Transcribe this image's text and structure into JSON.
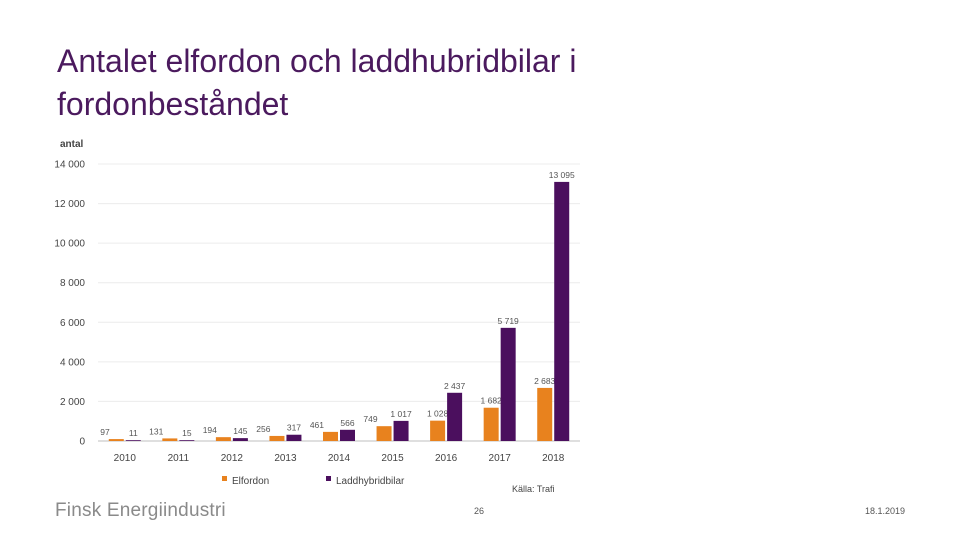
{
  "slide": {
    "title": "Antalet elfordon och laddhubridbilar i fordonbeståndet",
    "footer_logo": "Finsk Energiindustri",
    "page_number": "26",
    "date": "18.1.2019"
  },
  "chart_data": {
    "type": "bar",
    "ylabel": "antal",
    "ylim": [
      0,
      14000
    ],
    "y_ticks": [
      "0",
      "2 000",
      "4 000",
      "6 000",
      "8 000",
      "10 000",
      "12 000",
      "14 000"
    ],
    "categories": [
      "2010",
      "2011",
      "2012",
      "2013",
      "2014",
      "2015",
      "2016",
      "2017",
      "2018"
    ],
    "series": [
      {
        "name": "Elfordon",
        "color": "#e8821e",
        "values": [
          97,
          131,
          194,
          256,
          461,
          749,
          1028,
          1682,
          2683
        ],
        "labels": [
          "97",
          "131",
          "194",
          "256",
          "461",
          "749",
          "1 028",
          "1 682",
          "2 683"
        ]
      },
      {
        "name": "Laddhybridbilar",
        "color": "#4b0f5e",
        "values": [
          11,
          15,
          145,
          317,
          566,
          1017,
          2437,
          5719,
          13095
        ],
        "labels": [
          "11",
          "15",
          "145",
          "317",
          "566",
          "1 017",
          "2 437",
          "5 719",
          "13 095"
        ]
      }
    ],
    "legend_position": "bottom-left",
    "source": "Källa: Trafi",
    "grid": true
  }
}
